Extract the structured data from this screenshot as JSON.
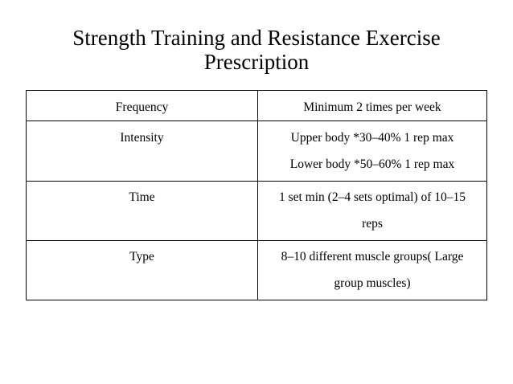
{
  "title": "Strength Training and Resistance Exercise Prescription",
  "table": {
    "rows": [
      [
        "Frequency",
        [
          "Minimum 2 times per week"
        ]
      ],
      [
        "Intensity",
        [
          "Upper body *30–40% 1 rep max",
          "Lower body *50–60% 1 rep max"
        ]
      ],
      [
        "Time",
        [
          "1 set min (2–4 sets optimal) of 10–15 reps"
        ]
      ],
      [
        "Type",
        [
          "8–10 different muscle groups( Large group muscles)"
        ]
      ]
    ]
  }
}
